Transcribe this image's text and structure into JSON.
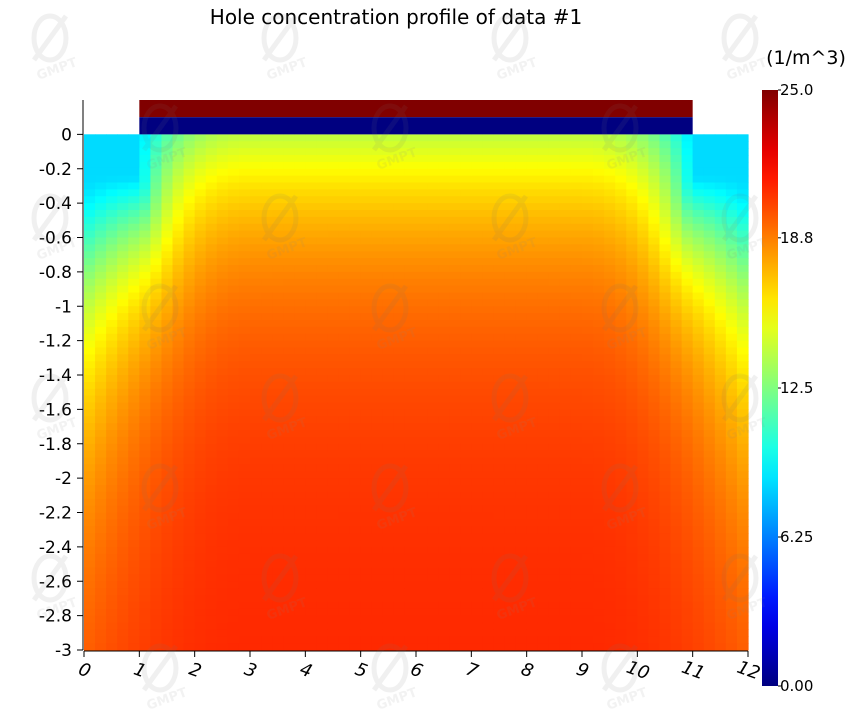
{
  "chart_data": {
    "type": "heatmap",
    "title": "Hole concentration profile of data #1",
    "xlabel": "",
    "ylabel": "",
    "x_range": [
      0,
      12
    ],
    "y_range": [
      -3,
      0.2
    ],
    "x_ticks": [
      "0",
      "1",
      "2",
      "3",
      "4",
      "5",
      "6",
      "7",
      "8",
      "9",
      "10",
      "11",
      "12"
    ],
    "y_ticks": [
      "0",
      "-0.2",
      "-0.4",
      "-0.6",
      "-0.8",
      "-1",
      "-1.2",
      "-1.4",
      "-1.6",
      "-1.8",
      "-2",
      "-2.2",
      "-2.4",
      "-2.6",
      "-2.8",
      "-3"
    ],
    "colorbar": {
      "unit": "(1/m^3)",
      "range": [
        0,
        25
      ],
      "ticks": [
        "25.0",
        "18.8",
        "12.5",
        "6.25",
        "0.00"
      ],
      "colormap": "jet"
    },
    "regions": [
      {
        "name": "top layer",
        "x": [
          1,
          11
        ],
        "y": [
          0.1,
          0.2
        ],
        "value": 25
      },
      {
        "name": "oxide layer",
        "x": [
          1,
          11
        ],
        "y": [
          0,
          0.1
        ],
        "value": 0
      },
      {
        "name": "left contact region",
        "x": [
          0,
          1
        ],
        "y": [
          -0.25,
          0
        ],
        "value": 8.5
      },
      {
        "name": "right contact region",
        "x": [
          11,
          12
        ],
        "y": [
          -0.25,
          0
        ],
        "value": 8.5
      }
    ],
    "profile": {
      "surface_center_value": 14,
      "value_at_depth_0_8": 17,
      "value_at_depth_1_5": 20,
      "deep_value": 21
    }
  },
  "watermark": {
    "text": "GMPT"
  }
}
